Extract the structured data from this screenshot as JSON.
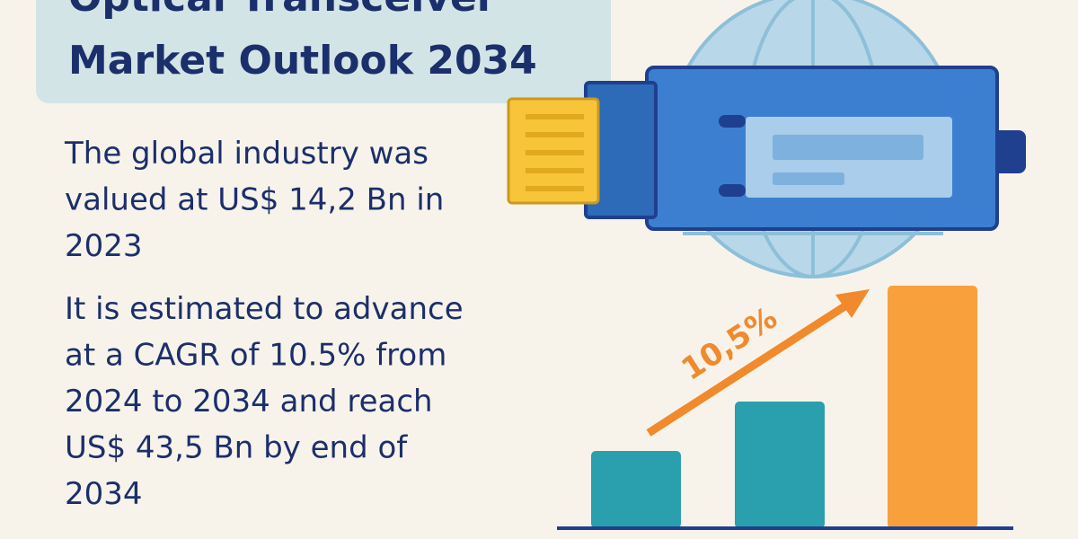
{
  "header": {
    "title_lines": [
      "Optical Transceiver",
      "Market Outlook 2034"
    ]
  },
  "paragraphs": [
    {
      "lines": [
        "The global industry was",
        "valued at US$ 14,2 Bn in",
        "2023"
      ]
    },
    {
      "lines": [
        "It is estimated to advance",
        "at a CAGR of 10.5% from",
        "2024 to 2034 and reach",
        "US$ 43,5 Bn by end of",
        "2034"
      ]
    }
  ],
  "illustration": {
    "growth_label": "10,5%"
  }
}
